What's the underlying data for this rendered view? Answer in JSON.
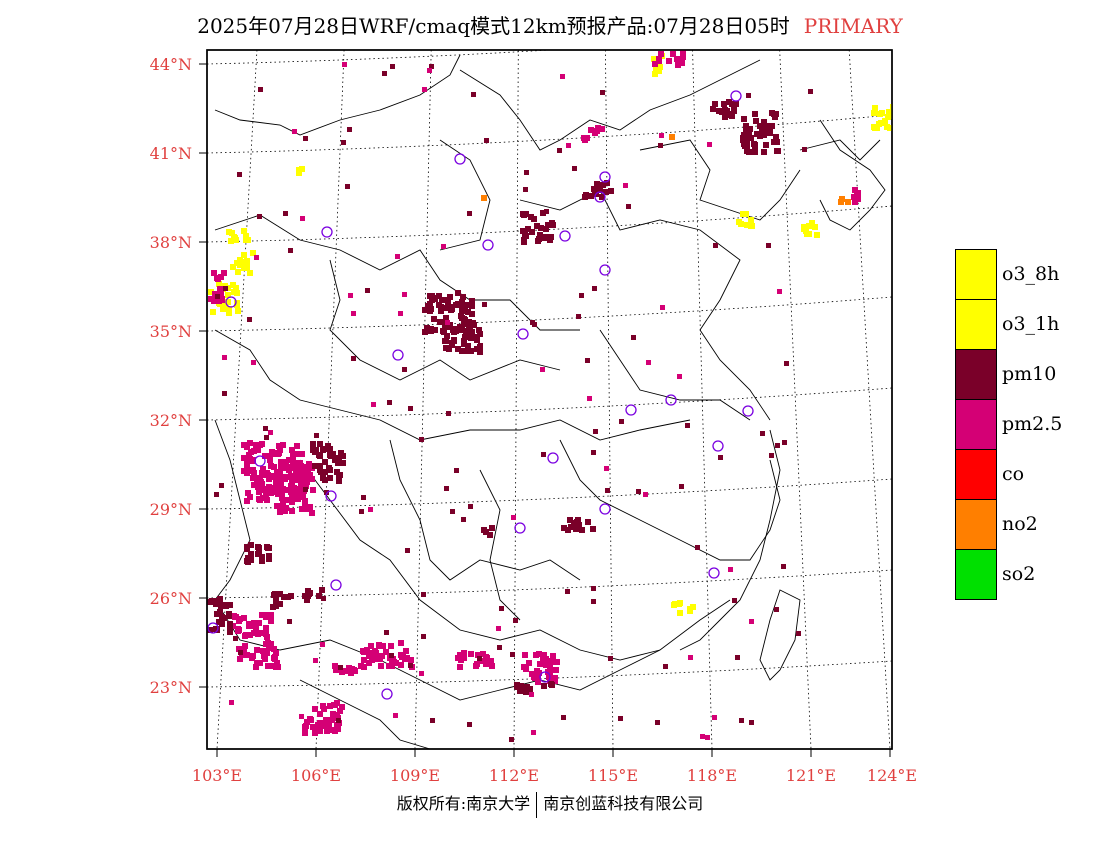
{
  "header": {
    "title": "2025年07月28日WRF/cmaq模式12km预报产品:07月28日05时",
    "tag": "PRIMARY"
  },
  "axes": {
    "lat_labels": [
      "44°N",
      "41°N",
      "38°N",
      "35°N",
      "32°N",
      "29°N",
      "26°N",
      "23°N"
    ],
    "lon_labels": [
      "103°E",
      "106°E",
      "109°E",
      "112°E",
      "115°E",
      "118°E",
      "121°E",
      "124°E"
    ]
  },
  "legend": [
    {
      "label": "o3_8h",
      "color": "#ffff00"
    },
    {
      "label": "o3_1h",
      "color": "#ffff00"
    },
    {
      "label": "pm10",
      "color": "#7a0029"
    },
    {
      "label": "pm2.5",
      "color": "#d40075"
    },
    {
      "label": "co",
      "color": "#ff0000"
    },
    {
      "label": "no2",
      "color": "#ff7f00"
    },
    {
      "label": "so2",
      "color": "#00e000"
    }
  ],
  "footer": {
    "left": "版权所有:南京大学",
    "right": "南京创蓝科技有限公司"
  },
  "colors": {
    "axis_label": "#e0403f",
    "city_marker": "#7a00e0"
  }
}
